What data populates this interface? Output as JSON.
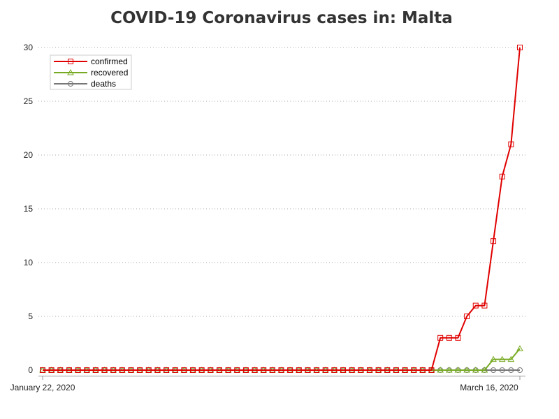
{
  "chart_data": {
    "type": "line",
    "title": "COVID-19 Coronavirus cases in: Malta",
    "xlabel": "",
    "ylabel": "",
    "x_tick_labels": [
      "January 22, 2020",
      "March 16, 2020"
    ],
    "x_range": [
      "January 22, 2020",
      "March 16, 2020"
    ],
    "y_ticks": [
      0,
      5,
      10,
      15,
      20,
      25,
      30
    ],
    "ylim": [
      0,
      30
    ],
    "grid": "horizontal dotted",
    "legend_position": "top-left",
    "series": [
      {
        "name": "confirmed",
        "color": "#e00000",
        "marker": "square",
        "values": [
          0,
          0,
          0,
          0,
          0,
          0,
          0,
          0,
          0,
          0,
          0,
          0,
          0,
          0,
          0,
          0,
          0,
          0,
          0,
          0,
          0,
          0,
          0,
          0,
          0,
          0,
          0,
          0,
          0,
          0,
          0,
          0,
          0,
          0,
          0,
          0,
          0,
          0,
          0,
          0,
          0,
          0,
          0,
          0,
          0,
          3,
          3,
          3,
          5,
          6,
          6,
          12,
          18,
          21,
          30
        ]
      },
      {
        "name": "recovered",
        "color": "#77aa22",
        "marker": "triangle",
        "values": [
          0,
          0,
          0,
          0,
          0,
          0,
          0,
          0,
          0,
          0,
          0,
          0,
          0,
          0,
          0,
          0,
          0,
          0,
          0,
          0,
          0,
          0,
          0,
          0,
          0,
          0,
          0,
          0,
          0,
          0,
          0,
          0,
          0,
          0,
          0,
          0,
          0,
          0,
          0,
          0,
          0,
          0,
          0,
          0,
          0,
          0,
          0,
          0,
          0,
          0,
          0,
          1,
          1,
          1,
          2
        ]
      },
      {
        "name": "deaths",
        "color": "#777777",
        "marker": "circle",
        "values": [
          0,
          0,
          0,
          0,
          0,
          0,
          0,
          0,
          0,
          0,
          0,
          0,
          0,
          0,
          0,
          0,
          0,
          0,
          0,
          0,
          0,
          0,
          0,
          0,
          0,
          0,
          0,
          0,
          0,
          0,
          0,
          0,
          0,
          0,
          0,
          0,
          0,
          0,
          0,
          0,
          0,
          0,
          0,
          0,
          0,
          0,
          0,
          0,
          0,
          0,
          0,
          0,
          0,
          0,
          0
        ]
      }
    ]
  }
}
